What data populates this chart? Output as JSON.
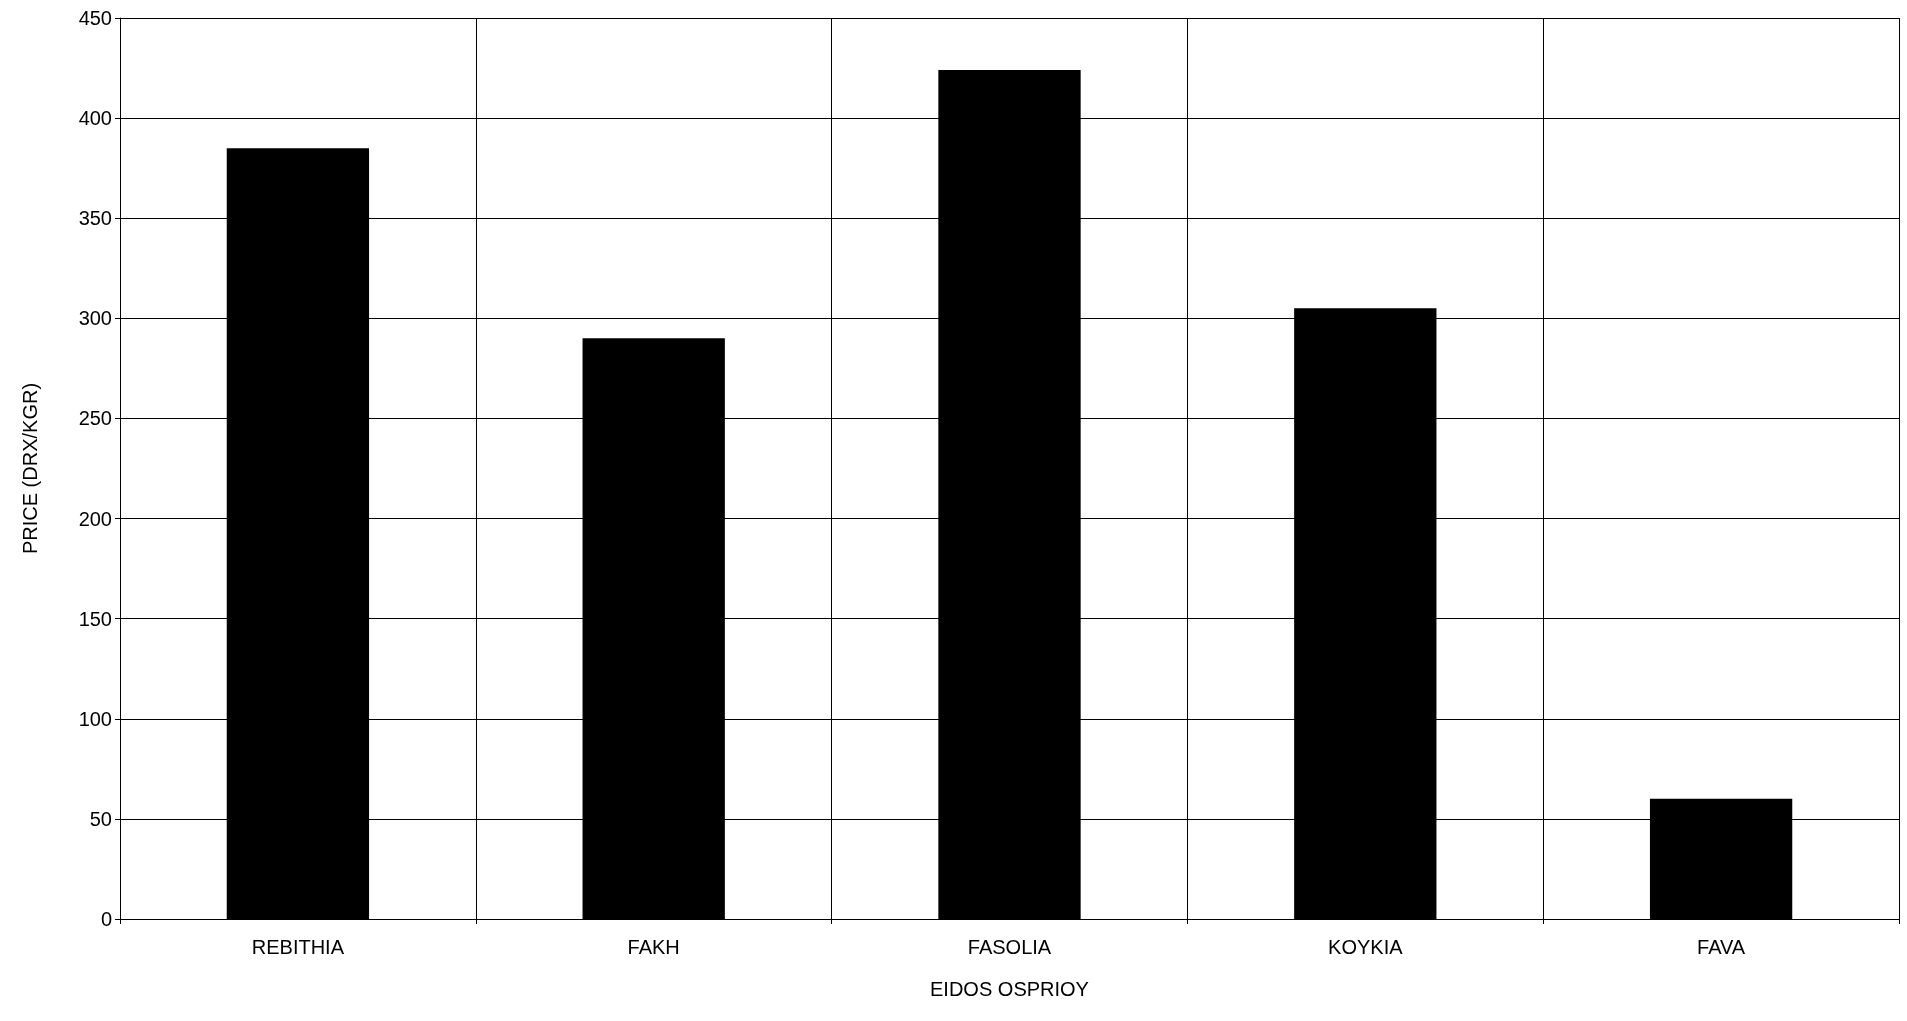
{
  "chart_data": {
    "type": "bar",
    "xlabel": "EIDOS OSPRIOY",
    "ylabel": "PRICE (DRX/KGR)",
    "categories": [
      "REBITHIA",
      "FAKH",
      "FASOLIA",
      "KOYKIA",
      "FAVA"
    ],
    "values": [
      385,
      290,
      424,
      305,
      60
    ],
    "color": "#000000",
    "ylim": [
      0,
      450
    ],
    "yticks": [
      0,
      50,
      100,
      150,
      200,
      250,
      300,
      350,
      400,
      450
    ],
    "grid": true
  }
}
